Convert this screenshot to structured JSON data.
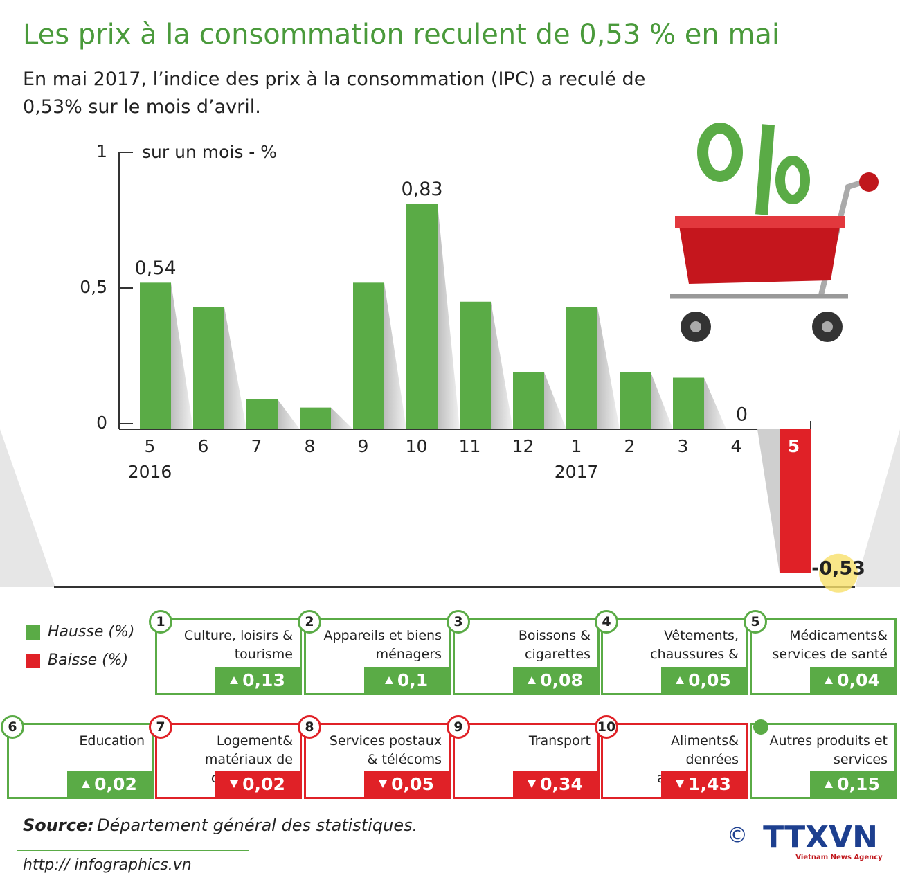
{
  "chart_data": {
    "type": "bar",
    "title": "Les prix à la consommation reculent de 0,53 % en mai",
    "subtitle": "En mai 2017, l’indice des prix à la consommation (IPC) a reculé de 0,53% sur le mois d’avril.",
    "y_label": "sur un mois - %",
    "categories": [
      "5",
      "6",
      "7",
      "8",
      "9",
      "10",
      "11",
      "12",
      "1",
      "2",
      "3",
      "4",
      "5"
    ],
    "years": [
      "2016",
      null,
      null,
      null,
      null,
      null,
      null,
      null,
      "2017",
      null,
      null,
      null,
      null
    ],
    "values": [
      0.54,
      0.45,
      0.11,
      0.08,
      0.54,
      0.83,
      0.47,
      0.21,
      0.45,
      0.21,
      0.19,
      0,
      -0.53
    ],
    "value_labels": [
      "0,54",
      null,
      null,
      null,
      null,
      "0,83",
      null,
      null,
      null,
      null,
      null,
      "0",
      "-0,53"
    ],
    "colors": [
      "#5aab46",
      "#5aab46",
      "#5aab46",
      "#5aab46",
      "#5aab46",
      "#5aab46",
      "#5aab46",
      "#5aab46",
      "#5aab46",
      "#5aab46",
      "#5aab46",
      "#5aab46",
      "#e02127"
    ],
    "ylim": [
      -0.6,
      1
    ],
    "yticks": [
      0,
      {
        "value": 0.5,
        "label": "0,5"
      },
      1
    ]
  },
  "legend": [
    {
      "label": "Hausse (%)",
      "color": "#5aab46"
    },
    {
      "label": "Baisse (%)",
      "color": "#e02127"
    }
  ],
  "items": [
    {
      "rank": "1",
      "label": "Culture, loisirs & tourisme",
      "trend": "up",
      "value": "0,13"
    },
    {
      "rank": "2",
      "label": "Appareils et biens ménagers",
      "trend": "up",
      "value": "0,1"
    },
    {
      "rank": "3",
      "label": "Boissons & cigarettes",
      "trend": "up",
      "value": "0,08"
    },
    {
      "rank": "4",
      "label": "Vêtements, chaussures & chapeaux",
      "trend": "up",
      "value": "0,05"
    },
    {
      "rank": "5",
      "label": "Médicaments& services de santé",
      "trend": "up",
      "value": "0,04"
    },
    {
      "rank": "6",
      "label": "Education",
      "trend": "up",
      "value": "0,02"
    },
    {
      "rank": "7",
      "label": "Logement& matériaux de construction",
      "trend": "down",
      "value": "0,02"
    },
    {
      "rank": "8",
      "label": "Services postaux & télécoms",
      "trend": "down",
      "value": "0,05"
    },
    {
      "rank": "9",
      "label": "Transport",
      "trend": "down",
      "value": "0,34"
    },
    {
      "rank": "10",
      "label": "Aliments& denrées alimentaires",
      "trend": "down",
      "value": "1,43"
    },
    {
      "rank": null,
      "label": "Autres produits et services",
      "trend": "up",
      "value": "0,15"
    }
  ],
  "footer": {
    "source_label": "Source:",
    "source": "Département général des statistiques.",
    "url": "http:// infographics.vn",
    "copyright": "©",
    "logo": "TTXVN",
    "agency": "Vietnam News Agency"
  }
}
